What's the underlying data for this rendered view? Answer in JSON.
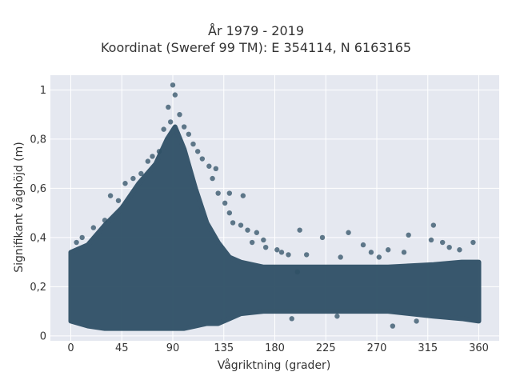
{
  "chart_data": {
    "type": "scatter",
    "title_lines": [
      "År 1979 - 2019",
      "Koordinat (Sweref 99 TM): E 354114, N 6163165"
    ],
    "xlabel": "Vågriktning (grader)",
    "ylabel": "Signifikant våghöjd (m)",
    "xlim": [
      -18,
      378
    ],
    "ylim": [
      -0.02,
      1.06
    ],
    "x_ticks": [
      0,
      45,
      90,
      135,
      180,
      225,
      270,
      315,
      360
    ],
    "x_tick_labels": [
      "0",
      "45",
      "90",
      "135",
      "180",
      "225",
      "270",
      "315",
      "360"
    ],
    "y_ticks": [
      0,
      0.2,
      0.4,
      0.6,
      0.8,
      1
    ],
    "y_tick_labels": [
      "0",
      "0,2",
      "0,4",
      "0,6",
      "0,8",
      "1"
    ],
    "grid": true,
    "point_color": "#2f5066",
    "background_color": "#e5e8f0",
    "envelope": [
      {
        "x": 0,
        "ymin": 0.06,
        "ymax": 0.34
      },
      {
        "x": 15,
        "ymin": 0.04,
        "ymax": 0.37
      },
      {
        "x": 30,
        "ymin": 0.03,
        "ymax": 0.45
      },
      {
        "x": 45,
        "ymin": 0.03,
        "ymax": 0.52
      },
      {
        "x": 60,
        "ymin": 0.03,
        "ymax": 0.62
      },
      {
        "x": 75,
        "ymin": 0.03,
        "ymax": 0.7
      },
      {
        "x": 85,
        "ymin": 0.03,
        "ymax": 0.8
      },
      {
        "x": 92,
        "ymin": 0.03,
        "ymax": 0.85
      },
      {
        "x": 100,
        "ymin": 0.03,
        "ymax": 0.76
      },
      {
        "x": 110,
        "ymin": 0.04,
        "ymax": 0.6
      },
      {
        "x": 120,
        "ymin": 0.05,
        "ymax": 0.46
      },
      {
        "x": 130,
        "ymin": 0.05,
        "ymax": 0.38
      },
      {
        "x": 140,
        "ymin": 0.07,
        "ymax": 0.32
      },
      {
        "x": 150,
        "ymin": 0.09,
        "ymax": 0.3
      },
      {
        "x": 170,
        "ymin": 0.1,
        "ymax": 0.28
      },
      {
        "x": 200,
        "ymin": 0.1,
        "ymax": 0.28
      },
      {
        "x": 240,
        "ymin": 0.1,
        "ymax": 0.28
      },
      {
        "x": 280,
        "ymin": 0.1,
        "ymax": 0.28
      },
      {
        "x": 320,
        "ymin": 0.08,
        "ymax": 0.29
      },
      {
        "x": 345,
        "ymin": 0.07,
        "ymax": 0.3
      },
      {
        "x": 360,
        "ymin": 0.06,
        "ymax": 0.3
      }
    ],
    "points": [
      {
        "x": 90,
        "y": 1.02
      },
      {
        "x": 92,
        "y": 0.98
      },
      {
        "x": 86,
        "y": 0.93
      },
      {
        "x": 96,
        "y": 0.9
      },
      {
        "x": 88,
        "y": 0.87
      },
      {
        "x": 82,
        "y": 0.84
      },
      {
        "x": 100,
        "y": 0.85
      },
      {
        "x": 104,
        "y": 0.82
      },
      {
        "x": 108,
        "y": 0.78
      },
      {
        "x": 112,
        "y": 0.75
      },
      {
        "x": 116,
        "y": 0.72
      },
      {
        "x": 122,
        "y": 0.69
      },
      {
        "x": 128,
        "y": 0.68
      },
      {
        "x": 125,
        "y": 0.64
      },
      {
        "x": 130,
        "y": 0.58
      },
      {
        "x": 140,
        "y": 0.58
      },
      {
        "x": 152,
        "y": 0.57
      },
      {
        "x": 136,
        "y": 0.54
      },
      {
        "x": 140,
        "y": 0.5
      },
      {
        "x": 143,
        "y": 0.46
      },
      {
        "x": 150,
        "y": 0.45
      },
      {
        "x": 156,
        "y": 0.43
      },
      {
        "x": 164,
        "y": 0.42
      },
      {
        "x": 170,
        "y": 0.39
      },
      {
        "x": 160,
        "y": 0.38
      },
      {
        "x": 172,
        "y": 0.36
      },
      {
        "x": 182,
        "y": 0.35
      },
      {
        "x": 186,
        "y": 0.34
      },
      {
        "x": 192,
        "y": 0.33
      },
      {
        "x": 202,
        "y": 0.43
      },
      {
        "x": 208,
        "y": 0.33
      },
      {
        "x": 222,
        "y": 0.4
      },
      {
        "x": 238,
        "y": 0.32
      },
      {
        "x": 245,
        "y": 0.42
      },
      {
        "x": 258,
        "y": 0.37
      },
      {
        "x": 265,
        "y": 0.34
      },
      {
        "x": 272,
        "y": 0.32
      },
      {
        "x": 280,
        "y": 0.35
      },
      {
        "x": 294,
        "y": 0.34
      },
      {
        "x": 298,
        "y": 0.41
      },
      {
        "x": 318,
        "y": 0.39
      },
      {
        "x": 320,
        "y": 0.45
      },
      {
        "x": 328,
        "y": 0.38
      },
      {
        "x": 334,
        "y": 0.36
      },
      {
        "x": 343,
        "y": 0.35
      },
      {
        "x": 355,
        "y": 0.38
      },
      {
        "x": 5,
        "y": 0.38
      },
      {
        "x": 10,
        "y": 0.4
      },
      {
        "x": 20,
        "y": 0.44
      },
      {
        "x": 30,
        "y": 0.47
      },
      {
        "x": 35,
        "y": 0.57
      },
      {
        "x": 42,
        "y": 0.55
      },
      {
        "x": 48,
        "y": 0.62
      },
      {
        "x": 55,
        "y": 0.64
      },
      {
        "x": 62,
        "y": 0.66
      },
      {
        "x": 68,
        "y": 0.71
      },
      {
        "x": 72,
        "y": 0.73
      },
      {
        "x": 78,
        "y": 0.75
      },
      {
        "x": 284,
        "y": 0.04
      },
      {
        "x": 195,
        "y": 0.07
      },
      {
        "x": 235,
        "y": 0.08
      },
      {
        "x": 305,
        "y": 0.06
      },
      {
        "x": 200,
        "y": 0.26
      }
    ]
  }
}
